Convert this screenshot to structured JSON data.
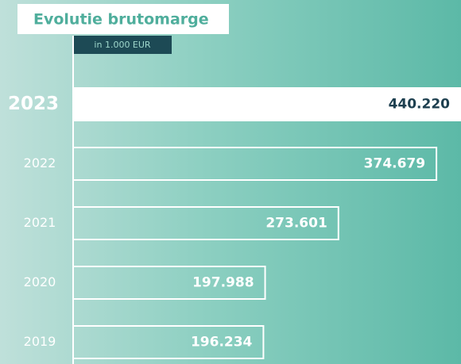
{
  "chart_data": {
    "type": "barh",
    "title": "Evolutie brutomarge",
    "subtitle": "in 1.000 EUR",
    "categories": [
      "2023",
      "2022",
      "2021",
      "2020",
      "2019"
    ],
    "values": [
      440220,
      374679,
      273601,
      197988,
      196234
    ],
    "value_labels": [
      "440.220",
      "374.679",
      "273.601",
      "197.988",
      "196.234"
    ],
    "xlim": [
      0,
      400000
    ],
    "color": "#ffffff"
  }
}
